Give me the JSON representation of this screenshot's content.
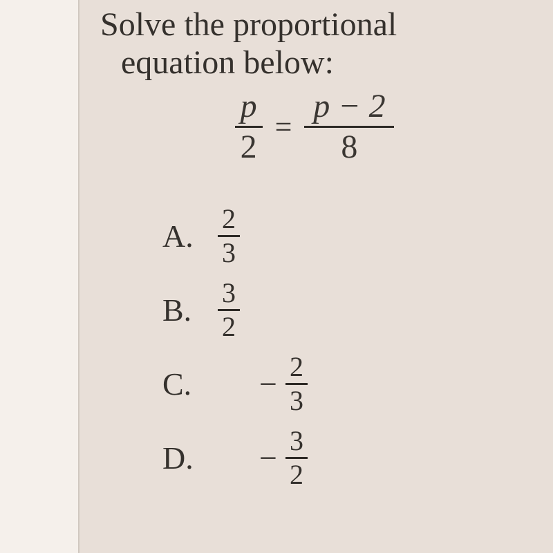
{
  "question": {
    "line1": "Solve the proportional",
    "line2": "equation below:",
    "equation": {
      "left": {
        "num": "p",
        "den": "2"
      },
      "equals": "=",
      "right": {
        "num": "p − 2",
        "den": "8"
      }
    }
  },
  "options": [
    {
      "label": "A.",
      "negative": false,
      "num": "2",
      "den": "3"
    },
    {
      "label": "B.",
      "negative": false,
      "num": "3",
      "den": "2"
    },
    {
      "label": "C.",
      "negative": true,
      "num": "2",
      "den": "3"
    },
    {
      "label": "D.",
      "negative": true,
      "num": "3",
      "den": "2"
    }
  ],
  "style": {
    "background_color": "#e8dfd8",
    "page_edge_color": "#f5f0eb",
    "text_color": "#35312d",
    "bar_color": "#2e2a26",
    "question_fontsize": 48,
    "option_fontsize": 46,
    "frac_fontsize": 40
  }
}
